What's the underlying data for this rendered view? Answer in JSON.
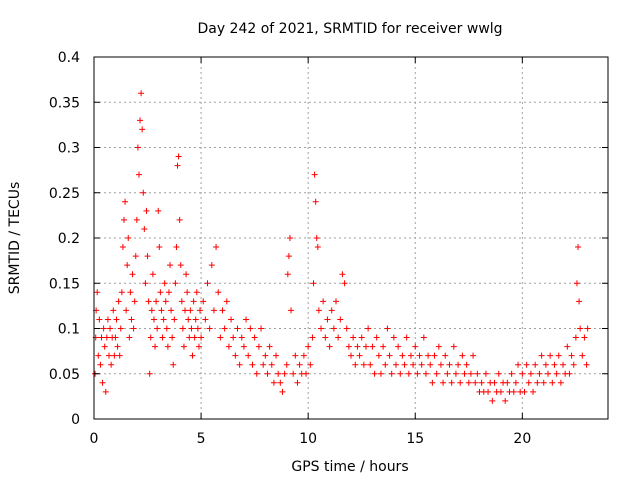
{
  "chart_data": {
    "type": "scatter",
    "title": "Day 242 of 2021, SRMTID for receiver wwlg",
    "xlabel": "GPS time / hours",
    "ylabel": "SRMTID / TECUs",
    "xlim": [
      0,
      24
    ],
    "ylim": [
      0,
      0.4
    ],
    "x_ticks": [
      0,
      5,
      10,
      15,
      20
    ],
    "x_tick_labels": [
      "0",
      "5",
      "10",
      "15",
      "20"
    ],
    "y_ticks": [
      0,
      0.05,
      0.1,
      0.15,
      0.2,
      0.25,
      0.3,
      0.35,
      0.4
    ],
    "y_tick_labels": [
      "0",
      "0.05",
      "0.1",
      "0.15",
      "0.2",
      "0.25",
      "0.3",
      "0.35",
      "0.4"
    ],
    "grid": true,
    "marker": "+",
    "color": "#ff0000",
    "series": [
      {
        "name": "SRMTID",
        "points": [
          [
            0.05,
            0.05
          ],
          [
            0.08,
            0.09
          ],
          [
            0.1,
            0.12
          ],
          [
            0.15,
            0.14
          ],
          [
            0.2,
            0.07
          ],
          [
            0.25,
            0.11
          ],
          [
            0.3,
            0.06
          ],
          [
            0.35,
            0.09
          ],
          [
            0.4,
            0.04
          ],
          [
            0.45,
            0.1
          ],
          [
            0.5,
            0.08
          ],
          [
            0.55,
            0.03
          ],
          [
            0.6,
            0.09
          ],
          [
            0.65,
            0.11
          ],
          [
            0.7,
            0.07
          ],
          [
            0.75,
            0.1
          ],
          [
            0.8,
            0.06
          ],
          [
            0.85,
            0.09
          ],
          [
            0.9,
            0.12
          ],
          [
            0.95,
            0.07
          ],
          [
            1.0,
            0.09
          ],
          [
            1.05,
            0.11
          ],
          [
            1.1,
            0.08
          ],
          [
            1.15,
            0.13
          ],
          [
            1.2,
            0.07
          ],
          [
            1.25,
            0.1
          ],
          [
            1.3,
            0.14
          ],
          [
            1.35,
            0.19
          ],
          [
            1.4,
            0.22
          ],
          [
            1.45,
            0.24
          ],
          [
            1.5,
            0.12
          ],
          [
            1.55,
            0.17
          ],
          [
            1.6,
            0.2
          ],
          [
            1.65,
            0.09
          ],
          [
            1.7,
            0.14
          ],
          [
            1.75,
            0.11
          ],
          [
            1.8,
            0.16
          ],
          [
            1.85,
            0.1
          ],
          [
            1.9,
            0.13
          ],
          [
            1.95,
            0.18
          ],
          [
            2.0,
            0.22
          ],
          [
            2.05,
            0.3
          ],
          [
            2.1,
            0.27
          ],
          [
            2.15,
            0.33
          ],
          [
            2.2,
            0.36
          ],
          [
            2.25,
            0.32
          ],
          [
            2.3,
            0.25
          ],
          [
            2.35,
            0.21
          ],
          [
            2.4,
            0.15
          ],
          [
            2.45,
            0.23
          ],
          [
            2.5,
            0.18
          ],
          [
            2.55,
            0.13
          ],
          [
            2.6,
            0.05
          ],
          [
            2.65,
            0.09
          ],
          [
            2.7,
            0.12
          ],
          [
            2.75,
            0.16
          ],
          [
            2.8,
            0.11
          ],
          [
            2.85,
            0.08
          ],
          [
            2.9,
            0.13
          ],
          [
            2.95,
            0.1
          ],
          [
            3.0,
            0.23
          ],
          [
            3.05,
            0.19
          ],
          [
            3.1,
            0.14
          ],
          [
            3.15,
            0.12
          ],
          [
            3.2,
            0.09
          ],
          [
            3.25,
            0.11
          ],
          [
            3.3,
            0.15
          ],
          [
            3.35,
            0.13
          ],
          [
            3.4,
            0.1
          ],
          [
            3.45,
            0.08
          ],
          [
            3.5,
            0.14
          ],
          [
            3.55,
            0.17
          ],
          [
            3.6,
            0.12
          ],
          [
            3.65,
            0.09
          ],
          [
            3.7,
            0.06
          ],
          [
            3.75,
            0.11
          ],
          [
            3.8,
            0.15
          ],
          [
            3.85,
            0.19
          ],
          [
            3.9,
            0.28
          ],
          [
            3.95,
            0.29
          ],
          [
            4.0,
            0.22
          ],
          [
            4.05,
            0.17
          ],
          [
            4.1,
            0.13
          ],
          [
            4.15,
            0.1
          ],
          [
            4.2,
            0.08
          ],
          [
            4.25,
            0.12
          ],
          [
            4.3,
            0.16
          ],
          [
            4.35,
            0.14
          ],
          [
            4.4,
            0.11
          ],
          [
            4.45,
            0.09
          ],
          [
            4.5,
            0.12
          ],
          [
            4.55,
            0.1
          ],
          [
            4.6,
            0.07
          ],
          [
            4.65,
            0.13
          ],
          [
            4.7,
            0.09
          ],
          [
            4.75,
            0.11
          ],
          [
            4.8,
            0.14
          ],
          [
            4.85,
            0.1
          ],
          [
            4.9,
            0.08
          ],
          [
            4.95,
            0.12
          ],
          [
            5.0,
            0.09
          ],
          [
            5.1,
            0.13
          ],
          [
            5.2,
            0.11
          ],
          [
            5.3,
            0.15
          ],
          [
            5.4,
            0.1
          ],
          [
            5.5,
            0.17
          ],
          [
            5.6,
            0.12
          ],
          [
            5.7,
            0.19
          ],
          [
            5.8,
            0.14
          ],
          [
            5.9,
            0.09
          ],
          [
            6.0,
            0.12
          ],
          [
            6.1,
            0.1
          ],
          [
            6.2,
            0.13
          ],
          [
            6.3,
            0.08
          ],
          [
            6.4,
            0.11
          ],
          [
            6.5,
            0.09
          ],
          [
            6.6,
            0.07
          ],
          [
            6.7,
            0.1
          ],
          [
            6.8,
            0.06
          ],
          [
            6.9,
            0.09
          ],
          [
            7.0,
            0.08
          ],
          [
            7.1,
            0.11
          ],
          [
            7.2,
            0.07
          ],
          [
            7.3,
            0.1
          ],
          [
            7.4,
            0.06
          ],
          [
            7.5,
            0.09
          ],
          [
            7.6,
            0.05
          ],
          [
            7.7,
            0.08
          ],
          [
            7.8,
            0.1
          ],
          [
            7.9,
            0.06
          ],
          [
            8.0,
            0.07
          ],
          [
            8.1,
            0.05
          ],
          [
            8.2,
            0.08
          ],
          [
            8.3,
            0.06
          ],
          [
            8.4,
            0.04
          ],
          [
            8.5,
            0.07
          ],
          [
            8.6,
            0.05
          ],
          [
            8.7,
            0.04
          ],
          [
            8.8,
            0.03
          ],
          [
            8.9,
            0.05
          ],
          [
            9.0,
            0.06
          ],
          [
            9.05,
            0.16
          ],
          [
            9.1,
            0.18
          ],
          [
            9.15,
            0.2
          ],
          [
            9.2,
            0.12
          ],
          [
            9.3,
            0.05
          ],
          [
            9.4,
            0.07
          ],
          [
            9.5,
            0.04
          ],
          [
            9.6,
            0.06
          ],
          [
            9.7,
            0.05
          ],
          [
            9.8,
            0.07
          ],
          [
            9.9,
            0.05
          ],
          [
            10.0,
            0.08
          ],
          [
            10.1,
            0.06
          ],
          [
            10.2,
            0.09
          ],
          [
            10.25,
            0.15
          ],
          [
            10.3,
            0.27
          ],
          [
            10.35,
            0.24
          ],
          [
            10.4,
            0.2
          ],
          [
            10.45,
            0.19
          ],
          [
            10.5,
            0.12
          ],
          [
            10.6,
            0.1
          ],
          [
            10.7,
            0.13
          ],
          [
            10.8,
            0.09
          ],
          [
            10.9,
            0.11
          ],
          [
            11.0,
            0.08
          ],
          [
            11.1,
            0.12
          ],
          [
            11.2,
            0.1
          ],
          [
            11.3,
            0.13
          ],
          [
            11.4,
            0.09
          ],
          [
            11.5,
            0.11
          ],
          [
            11.6,
            0.16
          ],
          [
            11.7,
            0.15
          ],
          [
            11.8,
            0.1
          ],
          [
            11.9,
            0.08
          ],
          [
            12.0,
            0.07
          ],
          [
            12.1,
            0.09
          ],
          [
            12.2,
            0.06
          ],
          [
            12.3,
            0.08
          ],
          [
            12.4,
            0.07
          ],
          [
            12.5,
            0.09
          ],
          [
            12.6,
            0.06
          ],
          [
            12.7,
            0.08
          ],
          [
            12.8,
            0.1
          ],
          [
            12.9,
            0.06
          ],
          [
            13.0,
            0.08
          ],
          [
            13.1,
            0.05
          ],
          [
            13.2,
            0.09
          ],
          [
            13.3,
            0.07
          ],
          [
            13.4,
            0.05
          ],
          [
            13.5,
            0.08
          ],
          [
            13.6,
            0.06
          ],
          [
            13.7,
            0.1
          ],
          [
            13.8,
            0.07
          ],
          [
            13.9,
            0.05
          ],
          [
            14.0,
            0.09
          ],
          [
            14.1,
            0.06
          ],
          [
            14.2,
            0.08
          ],
          [
            14.3,
            0.05
          ],
          [
            14.4,
            0.07
          ],
          [
            14.5,
            0.06
          ],
          [
            14.6,
            0.09
          ],
          [
            14.7,
            0.05
          ],
          [
            14.8,
            0.07
          ],
          [
            14.9,
            0.06
          ],
          [
            15.0,
            0.08
          ],
          [
            15.1,
            0.05
          ],
          [
            15.2,
            0.07
          ],
          [
            15.3,
            0.06
          ],
          [
            15.4,
            0.09
          ],
          [
            15.5,
            0.05
          ],
          [
            15.6,
            0.07
          ],
          [
            15.7,
            0.06
          ],
          [
            15.8,
            0.04
          ],
          [
            15.9,
            0.07
          ],
          [
            16.0,
            0.05
          ],
          [
            16.1,
            0.08
          ],
          [
            16.2,
            0.06
          ],
          [
            16.3,
            0.04
          ],
          [
            16.4,
            0.07
          ],
          [
            16.5,
            0.05
          ],
          [
            16.6,
            0.06
          ],
          [
            16.7,
            0.04
          ],
          [
            16.8,
            0.08
          ],
          [
            16.9,
            0.05
          ],
          [
            17.0,
            0.06
          ],
          [
            17.1,
            0.04
          ],
          [
            17.2,
            0.07
          ],
          [
            17.3,
            0.05
          ],
          [
            17.4,
            0.06
          ],
          [
            17.5,
            0.04
          ],
          [
            17.6,
            0.05
          ],
          [
            17.7,
            0.07
          ],
          [
            17.8,
            0.04
          ],
          [
            17.9,
            0.05
          ],
          [
            18.0,
            0.03
          ],
          [
            18.1,
            0.04
          ],
          [
            18.2,
            0.03
          ],
          [
            18.3,
            0.05
          ],
          [
            18.4,
            0.03
          ],
          [
            18.5,
            0.04
          ],
          [
            18.6,
            0.02
          ],
          [
            18.7,
            0.04
          ],
          [
            18.8,
            0.03
          ],
          [
            18.9,
            0.05
          ],
          [
            19.0,
            0.03
          ],
          [
            19.1,
            0.04
          ],
          [
            19.2,
            0.02
          ],
          [
            19.3,
            0.04
          ],
          [
            19.4,
            0.03
          ],
          [
            19.5,
            0.05
          ],
          [
            19.6,
            0.03
          ],
          [
            19.7,
            0.04
          ],
          [
            19.8,
            0.06
          ],
          [
            19.9,
            0.03
          ],
          [
            20.0,
            0.05
          ],
          [
            20.1,
            0.03
          ],
          [
            20.2,
            0.06
          ],
          [
            20.3,
            0.04
          ],
          [
            20.4,
            0.05
          ],
          [
            20.5,
            0.03
          ],
          [
            20.6,
            0.06
          ],
          [
            20.7,
            0.04
          ],
          [
            20.8,
            0.05
          ],
          [
            20.9,
            0.07
          ],
          [
            21.0,
            0.04
          ],
          [
            21.1,
            0.06
          ],
          [
            21.2,
            0.05
          ],
          [
            21.3,
            0.07
          ],
          [
            21.4,
            0.04
          ],
          [
            21.5,
            0.06
          ],
          [
            21.6,
            0.05
          ],
          [
            21.7,
            0.07
          ],
          [
            21.8,
            0.04
          ],
          [
            21.9,
            0.06
          ],
          [
            22.0,
            0.05
          ],
          [
            22.1,
            0.08
          ],
          [
            22.2,
            0.05
          ],
          [
            22.3,
            0.07
          ],
          [
            22.4,
            0.06
          ],
          [
            22.5,
            0.09
          ],
          [
            22.55,
            0.15
          ],
          [
            22.6,
            0.19
          ],
          [
            22.65,
            0.13
          ],
          [
            22.7,
            0.1
          ],
          [
            22.8,
            0.07
          ],
          [
            22.9,
            0.09
          ],
          [
            23.0,
            0.06
          ],
          [
            23.05,
            0.1
          ]
        ]
      }
    ]
  }
}
